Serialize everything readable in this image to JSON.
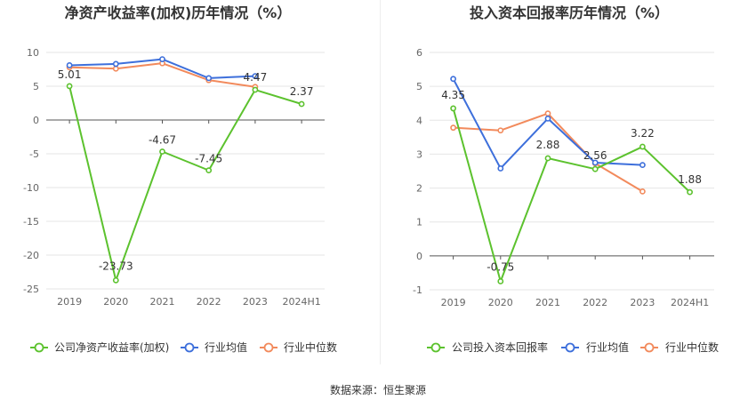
{
  "source_label": "数据来源：恒生聚源",
  "colors": {
    "company": "#5cc22e",
    "industry_avg": "#3d6fdb",
    "industry_median": "#f28a5c"
  },
  "chart_data": [
    {
      "type": "line",
      "title": "净资产收益率(加权)历年情况（%）",
      "categories": [
        "2019",
        "2020",
        "2021",
        "2022",
        "2023",
        "2024H1"
      ],
      "ylim": [
        -25,
        10
      ],
      "yticks": [
        10,
        5,
        0,
        -5,
        -10,
        -15,
        -20,
        -25
      ],
      "grid": true,
      "legend_position": "bottom",
      "series": [
        {
          "name": "公司净资产收益率(加权)",
          "values": [
            5.01,
            -23.73,
            -4.67,
            -7.45,
            4.47,
            2.37
          ],
          "labels": [
            "5.01",
            "-23.73",
            "-4.67",
            "-7.45",
            "4.47",
            "2.37"
          ]
        },
        {
          "name": "行业均值",
          "values": [
            8.1,
            8.3,
            9.0,
            6.2,
            6.5,
            null
          ]
        },
        {
          "name": "行业中位数",
          "values": [
            7.8,
            7.6,
            8.4,
            5.9,
            4.9,
            null
          ]
        }
      ]
    },
    {
      "type": "line",
      "title": "投入资本回报率历年情况（%）",
      "categories": [
        "2019",
        "2020",
        "2021",
        "2022",
        "2023",
        "2024H1"
      ],
      "ylim": [
        -1,
        6
      ],
      "yticks": [
        6,
        5,
        4,
        3,
        2,
        1,
        0,
        -1
      ],
      "grid": true,
      "legend_position": "bottom",
      "series": [
        {
          "name": "公司投入资本回报率",
          "values": [
            4.35,
            -0.75,
            2.88,
            2.56,
            3.22,
            1.88
          ],
          "labels": [
            "4.35",
            "-0.75",
            "2.88",
            "2.56",
            "3.22",
            "1.88"
          ]
        },
        {
          "name": "行业均值",
          "values": [
            5.22,
            2.58,
            4.05,
            2.75,
            2.68,
            null
          ]
        },
        {
          "name": "行业中位数",
          "values": [
            3.78,
            3.7,
            4.2,
            2.73,
            1.9,
            null
          ]
        }
      ]
    }
  ]
}
